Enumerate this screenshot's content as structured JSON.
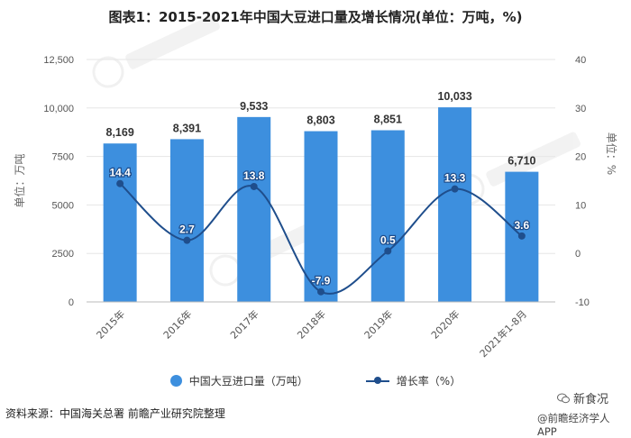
{
  "title": "图表1：2015-2021年中国大豆进口量及增长情况(单位：万吨，%)",
  "chart_data": {
    "type": "bar",
    "categories": [
      "2015年",
      "2016年",
      "2017年",
      "2018年",
      "2019年",
      "2020年",
      "2021年1-8月"
    ],
    "series": [
      {
        "name": "中国大豆进口量（万吨）",
        "type": "bar",
        "axis": "left",
        "values": [
          8169,
          8391,
          9533,
          8803,
          8851,
          10033,
          6710
        ],
        "labels": [
          "8,169",
          "8,391",
          "9,533",
          "8,803",
          "8,851",
          "10,033",
          "6,710"
        ]
      },
      {
        "name": "增长率（%）",
        "type": "line",
        "axis": "right",
        "values": [
          14.4,
          2.7,
          13.8,
          -7.9,
          0.5,
          13.3,
          3.6
        ],
        "labels": [
          "14.4",
          "2.7",
          "13.8",
          "-7.9",
          "0.5",
          "13.3",
          "3.6"
        ]
      }
    ],
    "ylabel_left": "单位：万吨",
    "ylabel_right": "单位：%",
    "ylim_left": [
      0,
      12500
    ],
    "ylim_right": [
      -10,
      40
    ],
    "yticks_left": [
      "0",
      "2500",
      "5000",
      "7500",
      "10,000",
      "12,500"
    ],
    "yticks_right": [
      "-10",
      "0",
      "10",
      "20",
      "30",
      "40"
    ],
    "grid": true,
    "legend_position": "bottom",
    "colors": {
      "bar": "#3d8fde",
      "line": "#1f4e8c"
    }
  },
  "legend": {
    "bar_label": "中国大豆进口量（万吨）",
    "line_label": "增长率（%）"
  },
  "source": "资料来源：中国海关总署 前瞻产业研究院整理",
  "brand": {
    "wechat_name": "新食况",
    "app_name": "@前瞻经济学人APP",
    "watermark_text": "前瞻产业研究院"
  }
}
